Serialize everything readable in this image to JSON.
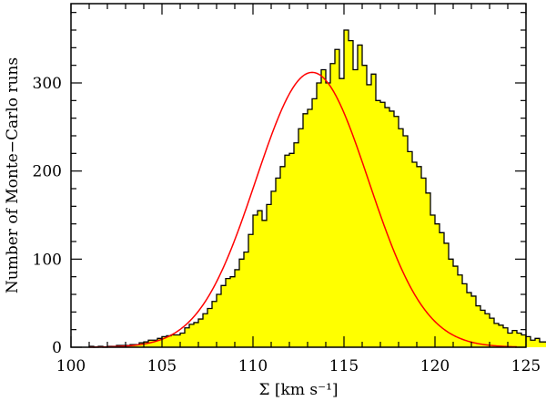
{
  "chart_data": {
    "type": "histogram",
    "xlabel": "Σ [km s⁻¹]",
    "ylabel": "Number of Monte−Carlo runs",
    "xlim": [
      100,
      125
    ],
    "ylim": [
      0,
      390
    ],
    "xticks": [
      100,
      105,
      110,
      115,
      120,
      125
    ],
    "yticks": [
      0,
      100,
      200,
      300
    ],
    "x_tick_labels": [
      "100",
      "105",
      "110",
      "115",
      "120",
      "125"
    ],
    "y_tick_labels": [
      "0",
      "100",
      "200",
      "300"
    ],
    "bin_width": 0.25,
    "bins_start": 101.0,
    "counts": [
      1,
      0,
      1,
      0,
      1,
      1,
      2,
      2,
      2,
      3,
      3,
      5,
      6,
      8,
      8,
      10,
      12,
      13,
      14,
      14,
      16,
      22,
      26,
      28,
      32,
      38,
      44,
      52,
      60,
      70,
      78,
      80,
      88,
      100,
      108,
      128,
      150,
      155,
      144,
      162,
      177,
      192,
      205,
      218,
      220,
      232,
      248,
      265,
      270,
      282,
      300,
      315,
      300,
      322,
      338,
      305,
      360,
      348,
      315,
      343,
      320,
      298,
      310,
      280,
      278,
      272,
      268,
      262,
      248,
      240,
      222,
      210,
      205,
      192,
      175,
      150,
      140,
      130,
      118,
      100,
      92,
      82,
      72,
      62,
      58,
      47,
      42,
      38,
      33,
      27,
      25,
      22,
      16,
      19,
      16,
      14,
      12,
      8,
      10,
      6,
      6,
      5,
      4,
      3,
      2,
      1
    ],
    "fit": {
      "type": "gaussian",
      "amplitude": 312,
      "mean": 113.25,
      "sigma": 3.1,
      "color": "#ff0000"
    },
    "fill_color": "#ffff00",
    "edge_color": "#000000"
  }
}
